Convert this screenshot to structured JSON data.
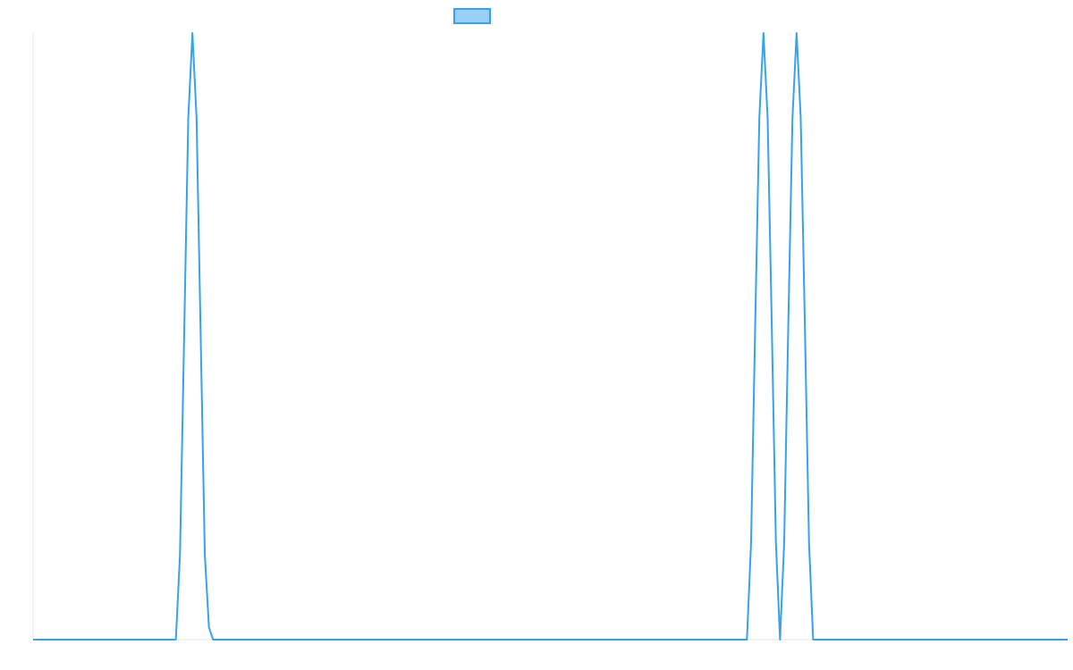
{
  "legend": {
    "label": ""
  },
  "colors": {
    "line": "#36a2eb",
    "fill": "#9ad0f5",
    "axis": "#e5e5e5"
  },
  "chart_data": {
    "type": "line",
    "title": "",
    "xlabel": "",
    "ylabel": "",
    "legend_position": "top",
    "grid": false,
    "xlim": [
      0,
      1
    ],
    "ylim": [
      0,
      1
    ],
    "series": [
      {
        "x": [
          0.0,
          0.138,
          0.142,
          0.146,
          0.15,
          0.154,
          0.158,
          0.162,
          0.166,
          0.17,
          0.174,
          0.178,
          0.596,
          0.69,
          0.694,
          0.698,
          0.702,
          0.706,
          0.71,
          0.714,
          0.718,
          0.722,
          0.726,
          0.73,
          0.734,
          0.738,
          0.742,
          0.746,
          0.75,
          0.754,
          0.758,
          0.762,
          0.766,
          0.77,
          0.774,
          1.0
        ],
        "y": [
          0,
          0,
          0.14,
          0.5,
          0.86,
          1.0,
          0.86,
          0.5,
          0.14,
          0.02,
          0,
          0,
          0,
          0,
          0.16,
          0.52,
          0.86,
          1.0,
          0.86,
          0.52,
          0.16,
          0,
          0.16,
          0.52,
          0.86,
          1.0,
          0.86,
          0.52,
          0.16,
          0,
          0,
          0,
          0,
          0,
          0,
          0
        ]
      }
    ]
  }
}
